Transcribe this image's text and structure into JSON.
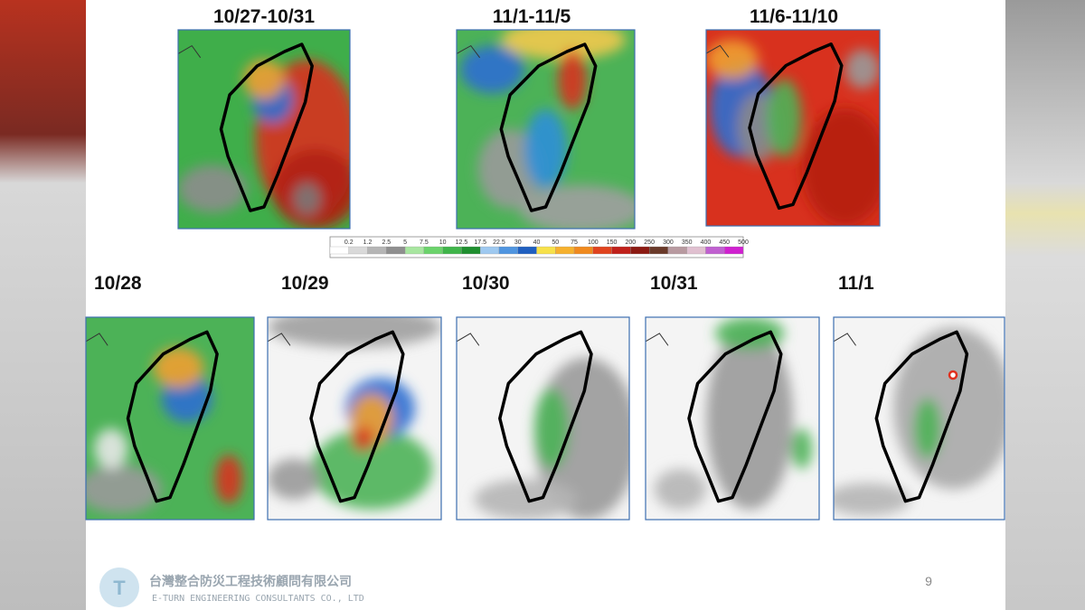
{
  "slide": {
    "period_maps": [
      {
        "label": "10/27-10/31"
      },
      {
        "label": "11/1-11/5"
      },
      {
        "label": "11/6-11/10"
      }
    ],
    "daily_maps": [
      {
        "label": "10/28"
      },
      {
        "label": "10/29"
      },
      {
        "label": "10/30"
      },
      {
        "label": "10/31"
      },
      {
        "label": "11/1"
      }
    ],
    "color_scale": [
      "0.2",
      "1.2",
      "2.5",
      "5",
      "7.5",
      "10",
      "12.5",
      "17.5",
      "22.5",
      "30",
      "40",
      "50",
      "75",
      "100",
      "150",
      "200",
      "250",
      "300",
      "350",
      "400",
      "450",
      "500"
    ],
    "footer": {
      "company_zh": "台灣整合防災工程技術顧問有限公司",
      "company_en": "E-TURN ENGINEERING CONSULTANTS CO., LTD",
      "page": "9"
    }
  }
}
